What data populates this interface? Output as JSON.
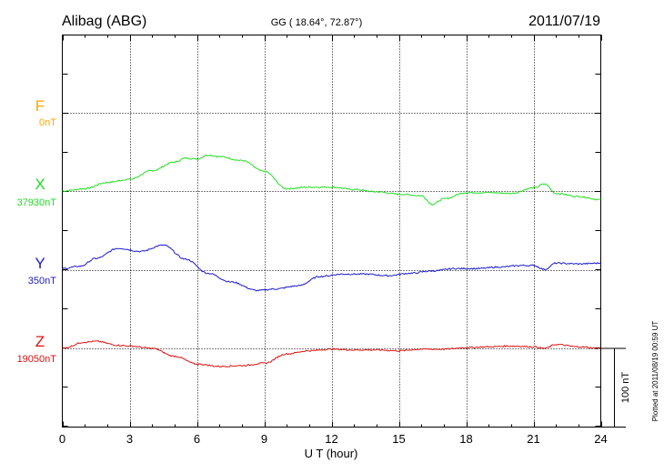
{
  "header": {
    "station": "Alibag (ABG)",
    "coords": "GG ( 18.64°,  72.87°)",
    "date": "2011/07/19"
  },
  "plotted_note": "Plotted at 2011/08/19 00:59 UT",
  "scale_bar_label": "100 nT",
  "chart_data": {
    "type": "line",
    "xlabel": "U T (hour)",
    "xlim": [
      0,
      24
    ],
    "xticks": [
      0,
      3,
      6,
      9,
      12,
      15,
      18,
      21,
      24
    ],
    "grid": true,
    "y_units_per_component_spacing_nT": 100,
    "scale_bar_nT": 100,
    "series": [
      {
        "name": "F",
        "baseline_label": "0nT",
        "color": "#ffa500",
        "x": [],
        "values": []
      },
      {
        "name": "X",
        "baseline_label": "37930nT",
        "color": "#22dd22",
        "x": [
          0,
          1,
          2,
          3,
          4,
          5,
          5.5,
          6,
          6.5,
          7,
          8,
          9,
          10,
          11,
          12,
          13,
          14,
          15,
          16,
          16.5,
          17,
          18,
          19,
          20,
          21,
          21.5,
          22,
          23,
          24
        ],
        "values": [
          0,
          3,
          11,
          15,
          26,
          37,
          42,
          41,
          46,
          44,
          39,
          25,
          3,
          5,
          5,
          2,
          -1,
          -4,
          -6,
          -17,
          -10,
          -2,
          -2,
          -3,
          4,
          9,
          -3,
          -7,
          -11
        ]
      },
      {
        "name": "Y",
        "baseline_label": "350nT",
        "color": "#1a1acc",
        "x": [
          0,
          0.8,
          1.5,
          2.5,
          3.5,
          4.5,
          5.5,
          6.5,
          7.5,
          8.7,
          9.5,
          10.5,
          11.5,
          12.5,
          13.5,
          14.5,
          15.5,
          16.5,
          17.5,
          18.5,
          19.5,
          20.5,
          21,
          21.5,
          22,
          23,
          24
        ],
        "values": [
          2,
          5,
          15,
          28,
          24,
          32,
          14,
          -4,
          -15,
          -26,
          -24,
          -20,
          -8,
          -5,
          -5,
          -7,
          -4,
          -1,
          2,
          2,
          4,
          6,
          6,
          1,
          9,
          8,
          9
        ]
      },
      {
        "name": "Z",
        "baseline_label": "19050nT",
        "color": "#dd1111",
        "x": [
          0,
          1,
          1.5,
          2.5,
          3,
          4,
          5,
          6,
          7,
          8,
          9,
          10,
          11,
          12,
          13,
          14,
          15,
          16,
          17,
          18,
          19,
          20,
          21,
          21.5,
          22,
          23,
          24
        ],
        "values": [
          0,
          8,
          9,
          4,
          3,
          0,
          -10,
          -20,
          -23,
          -22,
          -19,
          -7,
          -3,
          -1,
          -2,
          -2,
          -3,
          -1,
          -1,
          1,
          2,
          3,
          2,
          0,
          5,
          2,
          0
        ]
      }
    ]
  }
}
